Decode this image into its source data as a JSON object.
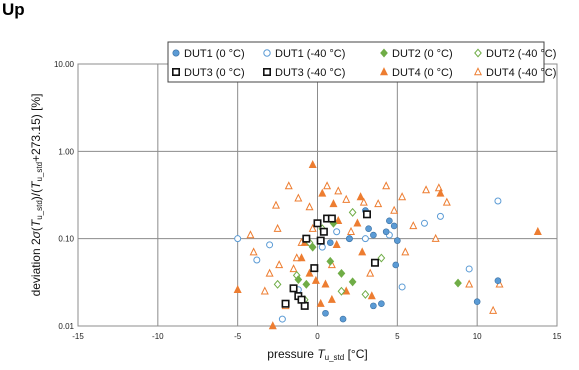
{
  "page": {
    "heading": "Up"
  },
  "colors": {
    "DUT1": "#5b9bd5",
    "DUT2": "#70ad47",
    "DUT3": "#111111",
    "DUT4": "#ed7d31",
    "grid": "#8c8c8c"
  },
  "chart_data": {
    "type": "scatter",
    "xlabel": {
      "pre": "pressure ",
      "var": "T",
      "sub": "u_std",
      "post": " [°C]"
    },
    "ylabel": {
      "pre": "deviation 2",
      "var1": "σ",
      "mid1": "(",
      "var2": "T",
      "sub2": "u_std",
      "mid2": ")/(",
      "var3": "T",
      "sub3": "u_std",
      "post": "+273.15) [%]"
    },
    "xlim": [
      -15,
      15
    ],
    "ylim": [
      0.01,
      10
    ],
    "yscale": "log",
    "xticks": [
      "-15",
      "-10",
      "-5",
      "0",
      "5",
      "10",
      "15"
    ],
    "yticks": [
      "0.01",
      "0.10",
      "1.00",
      "10.00"
    ],
    "grid": true,
    "legend_position": "top-right",
    "series": [
      {
        "name": "DUT1 (0 °C)",
        "marker": "circle",
        "filled": true,
        "color": "#5b9bd5",
        "points": [
          [
            3.2,
            0.13
          ],
          [
            4.3,
            0.12
          ],
          [
            4.8,
            0.14
          ],
          [
            5.0,
            0.095
          ],
          [
            4.5,
            0.16
          ],
          [
            3.5,
            0.11
          ],
          [
            2.0,
            0.1
          ],
          [
            4.0,
            0.018
          ],
          [
            3.5,
            0.017
          ],
          [
            4.9,
            0.05
          ],
          [
            1.6,
            0.012
          ],
          [
            0.5,
            0.014
          ],
          [
            10.0,
            0.019
          ],
          [
            11.3,
            0.033
          ],
          [
            3.0,
            0.21
          ],
          [
            0.8,
            0.09
          ]
        ]
      },
      {
        "name": "DUT1 (-40 °C)",
        "marker": "circle",
        "filled": false,
        "color": "#5b9bd5",
        "points": [
          [
            -5.0,
            0.1
          ],
          [
            -3.8,
            0.057
          ],
          [
            -3.0,
            0.085
          ],
          [
            -2.2,
            0.012
          ],
          [
            -1.2,
            0.026
          ],
          [
            1.2,
            0.12
          ],
          [
            2.0,
            0.1
          ],
          [
            3.0,
            0.1
          ],
          [
            4.5,
            0.11
          ],
          [
            5.3,
            0.028
          ],
          [
            6.7,
            0.15
          ],
          [
            7.7,
            0.18
          ],
          [
            9.5,
            0.045
          ],
          [
            11.3,
            0.27
          ],
          [
            0.3,
            0.08
          ]
        ]
      },
      {
        "name": "DUT2 (0 °C)",
        "marker": "diamond",
        "filled": true,
        "color": "#70ad47",
        "points": [
          [
            -0.3,
            0.08
          ],
          [
            1.5,
            0.04
          ],
          [
            0.8,
            0.055
          ],
          [
            -0.7,
            0.03
          ],
          [
            8.8,
            0.031
          ],
          [
            2.2,
            0.032
          ],
          [
            -1.2,
            0.034
          ],
          [
            1.0,
            0.15
          ]
        ]
      },
      {
        "name": "DUT2 (-40 °C)",
        "marker": "diamond",
        "filled": false,
        "color": "#70ad47",
        "points": [
          [
            -1.3,
            0.038
          ],
          [
            -0.5,
            0.09
          ],
          [
            0.3,
            0.13
          ],
          [
            2.2,
            0.2
          ],
          [
            4.0,
            0.06
          ],
          [
            -2.5,
            0.03
          ],
          [
            1.5,
            0.025
          ],
          [
            3.0,
            0.023
          ],
          [
            -0.8,
            0.02
          ]
        ]
      },
      {
        "name": "DUT3 (0 °C)",
        "marker": "square",
        "filled": true,
        "color": "#111111",
        "points": [
          [
            -1.5,
            0.027
          ],
          [
            -1.2,
            0.022
          ],
          [
            -2.0,
            0.018
          ],
          [
            -0.8,
            0.017
          ],
          [
            -0.2,
            0.046
          ],
          [
            0.9,
            0.17
          ],
          [
            -1.0,
            0.02
          ],
          [
            -0.7,
            0.1
          ]
        ]
      },
      {
        "name": "DUT3 (-40 °C)",
        "marker": "square",
        "filled": false,
        "color": "#111111",
        "points": [
          [
            0.0,
            0.15
          ],
          [
            0.4,
            0.12
          ],
          [
            0.6,
            0.17
          ],
          [
            3.1,
            0.19
          ],
          [
            3.6,
            0.053
          ],
          [
            0.2,
            0.095
          ]
        ]
      },
      {
        "name": "DUT4 (0 °C)",
        "marker": "triangle",
        "filled": true,
        "color": "#ed7d31",
        "points": [
          [
            -5.0,
            0.026
          ],
          [
            -2.8,
            0.01
          ],
          [
            -0.3,
            0.7
          ],
          [
            -0.5,
            0.04
          ],
          [
            0.3,
            0.33
          ],
          [
            1.0,
            0.25
          ],
          [
            1.3,
            0.16
          ],
          [
            0.2,
            0.018
          ],
          [
            -0.8,
            0.09
          ],
          [
            0.9,
            0.02
          ],
          [
            1.8,
            0.025
          ],
          [
            3.4,
            0.022
          ],
          [
            2.7,
            0.3
          ],
          [
            2.5,
            0.15
          ],
          [
            2.8,
            0.07
          ],
          [
            1.2,
            0.085
          ],
          [
            -1.0,
            0.06
          ],
          [
            0.5,
            0.03
          ],
          [
            7.7,
            0.33
          ],
          [
            13.8,
            0.12
          ],
          [
            -0.1,
            0.033
          ]
        ]
      },
      {
        "name": "DUT4 (-40 °C)",
        "marker": "triangle",
        "filled": false,
        "color": "#ed7d31",
        "points": [
          [
            -4.0,
            0.07
          ],
          [
            -3.0,
            0.04
          ],
          [
            -2.6,
            0.24
          ],
          [
            -2.5,
            0.13
          ],
          [
            -1.8,
            0.4
          ],
          [
            -2.0,
            0.017
          ],
          [
            -1.5,
            0.045
          ],
          [
            -1.3,
            0.06
          ],
          [
            -1.2,
            0.29
          ],
          [
            -1.0,
            0.09
          ],
          [
            -0.5,
            0.23
          ],
          [
            -0.3,
            0.13
          ],
          [
            0.6,
            0.4
          ],
          [
            1.3,
            0.35
          ],
          [
            1.8,
            0.28
          ],
          [
            2.1,
            0.12
          ],
          [
            2.9,
            0.26
          ],
          [
            3.3,
            0.04
          ],
          [
            3.8,
            0.25
          ],
          [
            4.3,
            0.4
          ],
          [
            4.8,
            0.21
          ],
          [
            5.3,
            0.3
          ],
          [
            6.0,
            0.14
          ],
          [
            6.8,
            0.36
          ],
          [
            7.4,
            0.1
          ],
          [
            8.1,
            0.26
          ],
          [
            9.5,
            0.03
          ],
          [
            11.0,
            0.015
          ],
          [
            11.4,
            0.03
          ],
          [
            -3.3,
            0.025
          ],
          [
            -2.4,
            0.05
          ],
          [
            0.9,
            0.05
          ],
          [
            5.5,
            0.07
          ],
          [
            -4.2,
            0.11
          ],
          [
            7.6,
            0.38
          ]
        ]
      }
    ]
  }
}
